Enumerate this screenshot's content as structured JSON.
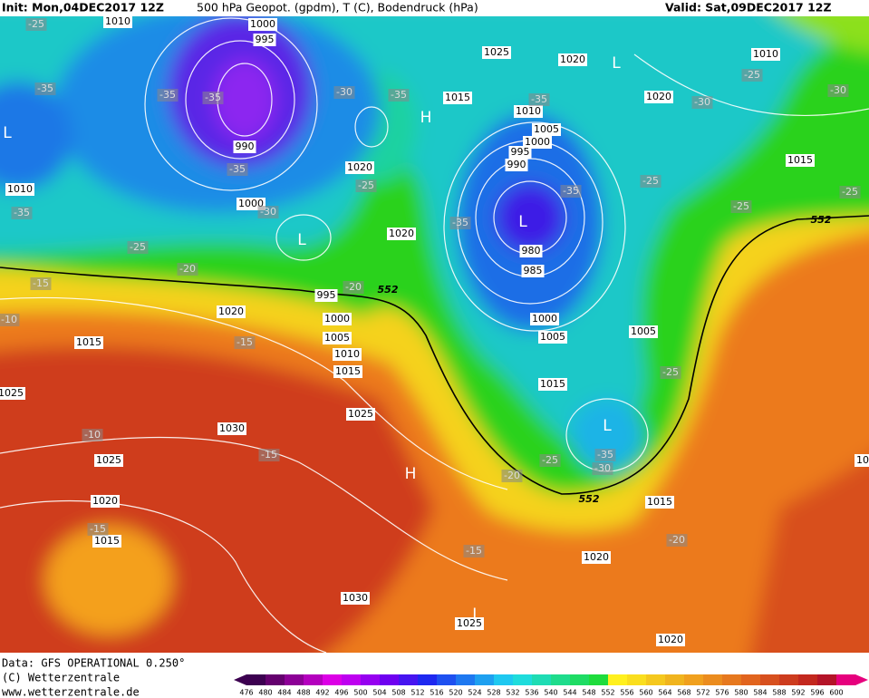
{
  "header": {
    "init": "Init: Mon,04DEC2017 12Z",
    "title": "500 hPa Geopot. (gpdm), T (C), Bodendruck (hPa)",
    "valid": "Valid: Sat,09DEC2017 12Z"
  },
  "footer": {
    "source": "Data: GFS OPERATIONAL 0.250°",
    "copyright": "(C) Wetterzentrale",
    "url": "www.wetterzentrale.de"
  },
  "scale": {
    "labels": [
      476,
      480,
      484,
      488,
      492,
      496,
      500,
      504,
      508,
      512,
      516,
      520,
      524,
      528,
      532,
      536,
      540,
      544,
      548,
      552,
      556,
      560,
      564,
      568,
      572,
      576,
      580,
      584,
      588,
      592,
      596,
      600
    ]
  },
  "map": {
    "pressure_labels": [
      1010,
      1000,
      995,
      1025,
      1020,
      1010,
      1015,
      1020,
      1010,
      1005,
      1000,
      995,
      990,
      990,
      1020,
      1015,
      1010,
      1000,
      1020,
      980,
      985,
      995,
      1020,
      1000,
      1000,
      1005,
      1005,
      1005,
      1015,
      1010,
      1015,
      1015,
      1025,
      1025,
      1030,
      1025,
      1020,
      1015,
      1015,
      1020,
      1030,
      1025,
      1020,
      10
    ],
    "temperature_labels": [
      -25,
      -35,
      -35,
      -35,
      -30,
      -35,
      -35,
      -30,
      -25,
      -30,
      -35,
      -25,
      -35,
      -25,
      -25,
      -35,
      -30,
      -35,
      -25,
      -25,
      -20,
      -15,
      -20,
      -10,
      -15,
      -25,
      -10,
      -15,
      -25,
      -35,
      -30,
      -20,
      -15,
      -15,
      -20
    ],
    "centers": [
      "L",
      "L",
      "H",
      "L",
      "L",
      "L",
      "H",
      "L"
    ],
    "contour_labels": [
      552,
      552,
      552
    ]
  }
}
